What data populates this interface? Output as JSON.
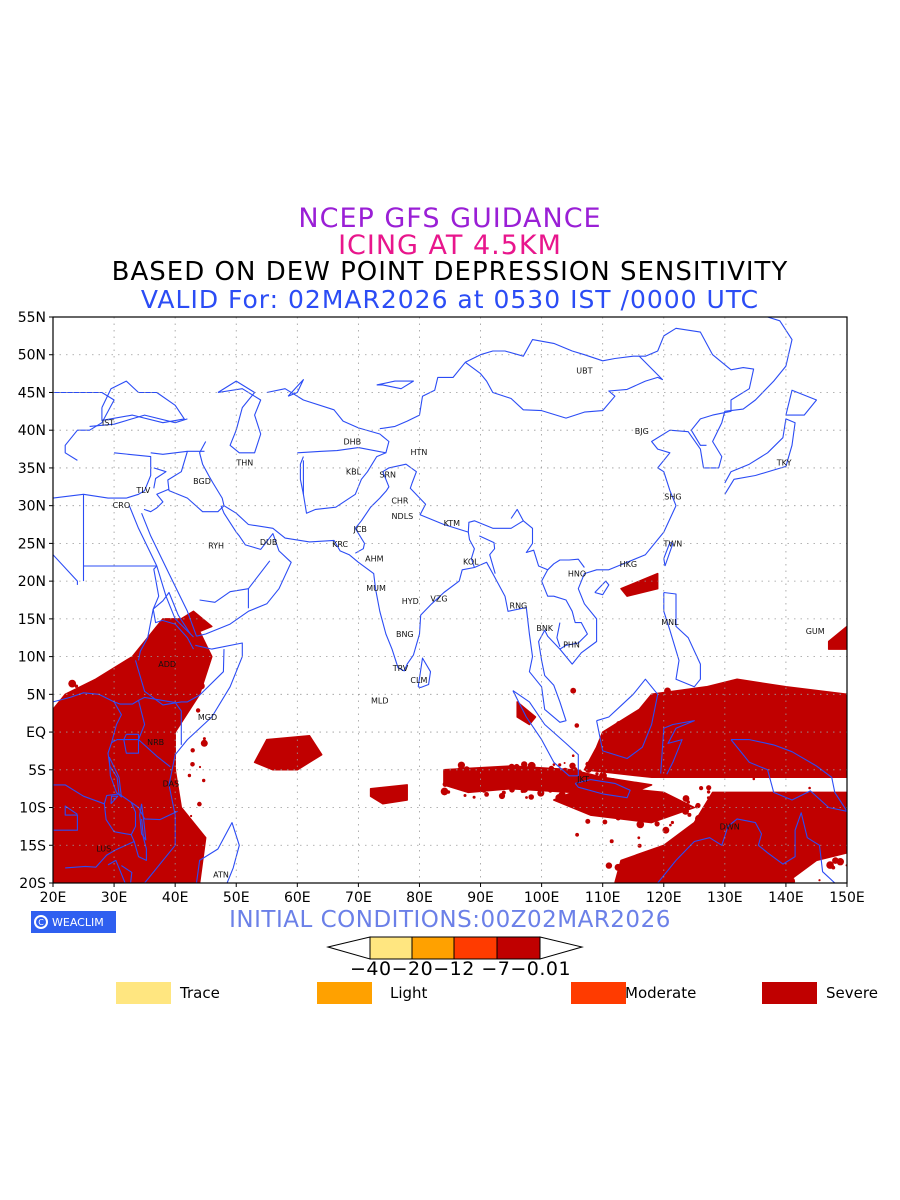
{
  "titles": {
    "line1": "NCEP GFS GUIDANCE",
    "line2": "ICING AT 4.5KM",
    "line3": "BASED ON DEW POINT DEPRESSION SENSITIVITY",
    "line4": "VALID For: 02MAR2026 at 0530 IST /0000 UTC"
  },
  "map": {
    "lon_range": [
      20,
      150
    ],
    "lat_range": [
      -20,
      55
    ],
    "lat_labels": [
      "55N",
      "50N",
      "45N",
      "40N",
      "35N",
      "30N",
      "25N",
      "20N",
      "15N",
      "10N",
      "5N",
      "EQ",
      "5S",
      "10S",
      "15S",
      "20S"
    ],
    "lon_labels": [
      "20E",
      "30E",
      "40E",
      "50E",
      "60E",
      "70E",
      "80E",
      "90E",
      "100E",
      "110E",
      "120E",
      "130E",
      "140E",
      "150E"
    ],
    "coast_color": "#2b4cf5",
    "stations": [
      {
        "name": "IST",
        "lon": 29,
        "lat": 41
      },
      {
        "name": "UBT",
        "lon": 107,
        "lat": 47.9
      },
      {
        "name": "BJG",
        "lon": 116.4,
        "lat": 39.9
      },
      {
        "name": "TKY",
        "lon": 139.7,
        "lat": 35.7
      },
      {
        "name": "DHB",
        "lon": 69,
        "lat": 38.5
      },
      {
        "name": "HTN",
        "lon": 79.9,
        "lat": 37.1
      },
      {
        "name": "THN",
        "lon": 51.4,
        "lat": 35.7
      },
      {
        "name": "KBL",
        "lon": 69.2,
        "lat": 34.5
      },
      {
        "name": "SRN",
        "lon": 74.8,
        "lat": 34.1
      },
      {
        "name": "TLV",
        "lon": 34.8,
        "lat": 32.1
      },
      {
        "name": "BGD",
        "lon": 44.4,
        "lat": 33.3
      },
      {
        "name": "CRO",
        "lon": 31.2,
        "lat": 30.1
      },
      {
        "name": "CHR",
        "lon": 76.8,
        "lat": 30.7
      },
      {
        "name": "SHG",
        "lon": 121.5,
        "lat": 31.2
      },
      {
        "name": "JCB",
        "lon": 70.3,
        "lat": 26.9
      },
      {
        "name": "NDLS",
        "lon": 77.2,
        "lat": 28.6
      },
      {
        "name": "RYH",
        "lon": 46.7,
        "lat": 24.7
      },
      {
        "name": "DUB",
        "lon": 55.3,
        "lat": 25.2
      },
      {
        "name": "KRC",
        "lon": 67,
        "lat": 24.9
      },
      {
        "name": "KTM",
        "lon": 85.3,
        "lat": 27.7
      },
      {
        "name": "TWN",
        "lon": 121.5,
        "lat": 25
      },
      {
        "name": "AHM",
        "lon": 72.6,
        "lat": 23
      },
      {
        "name": "KOL",
        "lon": 88.4,
        "lat": 22.6
      },
      {
        "name": "HKG",
        "lon": 114.2,
        "lat": 22.3
      },
      {
        "name": "HNO",
        "lon": 105.8,
        "lat": 21
      },
      {
        "name": "MUM",
        "lon": 72.9,
        "lat": 19.1
      },
      {
        "name": "HYD",
        "lon": 78.5,
        "lat": 17.4
      },
      {
        "name": "VZG",
        "lon": 83.2,
        "lat": 17.7
      },
      {
        "name": "RNG",
        "lon": 96.2,
        "lat": 16.8
      },
      {
        "name": "MNL",
        "lon": 121,
        "lat": 14.6
      },
      {
        "name": "BNK",
        "lon": 100.5,
        "lat": 13.8
      },
      {
        "name": "GUM",
        "lon": 144.8,
        "lat": 13.4
      },
      {
        "name": "BNG",
        "lon": 77.6,
        "lat": 13
      },
      {
        "name": "PHN",
        "lon": 104.9,
        "lat": 11.6
      },
      {
        "name": "ADD",
        "lon": 38.7,
        "lat": 9
      },
      {
        "name": "TRV",
        "lon": 76.9,
        "lat": 8.5
      },
      {
        "name": "CLM",
        "lon": 79.9,
        "lat": 6.9
      },
      {
        "name": "MGD",
        "lon": 45.3,
        "lat": 2
      },
      {
        "name": "MLD",
        "lon": 73.5,
        "lat": 4.2
      },
      {
        "name": "NRB",
        "lon": 36.8,
        "lat": -1.3
      },
      {
        "name": "DAS",
        "lon": 39.3,
        "lat": -6.8
      },
      {
        "name": "JKT",
        "lon": 106.8,
        "lat": -6.2
      },
      {
        "name": "DWN",
        "lon": 130.8,
        "lat": -12.5
      },
      {
        "name": "LUS",
        "lon": 28.3,
        "lat": -15.4
      },
      {
        "name": "ATN",
        "lon": 47.5,
        "lat": -18.9
      }
    ]
  },
  "icing_legend": {
    "initial_conditions": "INITIAL CONDITIONS:00Z02MAR2026",
    "logo_text": "WEACLIM",
    "colorbar_ticks": "−40−20−12 −7−0.01",
    "categories": [
      {
        "label": "Trace",
        "color": "#ffe680"
      },
      {
        "label": "Light",
        "color": "#ffa100"
      },
      {
        "label": "Moderate",
        "color": "#ff3b00"
      },
      {
        "label": "Severe",
        "color": "#c00000"
      }
    ]
  }
}
